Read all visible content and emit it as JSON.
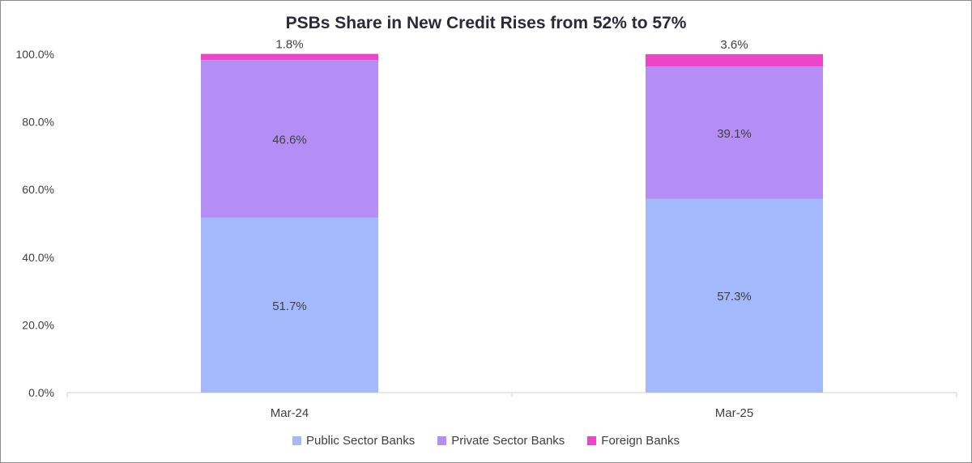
{
  "chart_data": {
    "type": "bar",
    "stacked": true,
    "title": "PSBs Share in New Credit Rises from 52% to 57%",
    "xlabel": "",
    "ylabel": "",
    "ylim": [
      0,
      100
    ],
    "yticks": [
      "0.0%",
      "20.0%",
      "40.0%",
      "60.0%",
      "80.0%",
      "100.0%"
    ],
    "categories": [
      "Mar-24",
      "Mar-25"
    ],
    "series": [
      {
        "name": "Public Sector Banks",
        "color": "#a3b9fc",
        "values": [
          51.7,
          57.3
        ],
        "labels": [
          "51.7%",
          "57.3%"
        ]
      },
      {
        "name": "Private Sector Banks",
        "color": "#b58ef5",
        "values": [
          46.6,
          39.1
        ],
        "labels": [
          "46.6%",
          "39.1%"
        ]
      },
      {
        "name": "Foreign Banks",
        "color": "#ee44c8",
        "values": [
          1.8,
          3.6
        ],
        "labels": [
          "1.8%",
          "3.6%"
        ]
      }
    ],
    "legend": "bottom",
    "grid": false
  }
}
